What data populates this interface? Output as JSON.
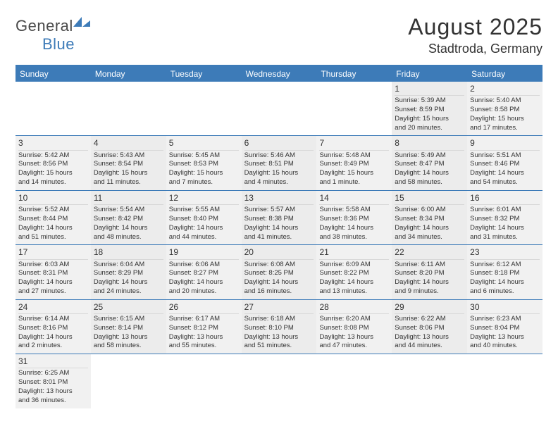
{
  "logo": {
    "text1": "General",
    "text2": "Blue"
  },
  "title": "August 2025",
  "location": "Stadtroda, Germany",
  "weekdays": [
    "Sunday",
    "Monday",
    "Tuesday",
    "Wednesday",
    "Thursday",
    "Friday",
    "Saturday"
  ],
  "colors": {
    "header_bg": "#3d7bb8",
    "cell_bg": "#f1f1f1",
    "text": "#333333"
  },
  "weeks": [
    [
      null,
      null,
      null,
      null,
      null,
      {
        "n": "1",
        "sr": "Sunrise: 5:39 AM",
        "ss": "Sunset: 8:59 PM",
        "d1": "Daylight: 15 hours",
        "d2": "and 20 minutes."
      },
      {
        "n": "2",
        "sr": "Sunrise: 5:40 AM",
        "ss": "Sunset: 8:58 PM",
        "d1": "Daylight: 15 hours",
        "d2": "and 17 minutes."
      }
    ],
    [
      {
        "n": "3",
        "sr": "Sunrise: 5:42 AM",
        "ss": "Sunset: 8:56 PM",
        "d1": "Daylight: 15 hours",
        "d2": "and 14 minutes."
      },
      {
        "n": "4",
        "sr": "Sunrise: 5:43 AM",
        "ss": "Sunset: 8:54 PM",
        "d1": "Daylight: 15 hours",
        "d2": "and 11 minutes."
      },
      {
        "n": "5",
        "sr": "Sunrise: 5:45 AM",
        "ss": "Sunset: 8:53 PM",
        "d1": "Daylight: 15 hours",
        "d2": "and 7 minutes."
      },
      {
        "n": "6",
        "sr": "Sunrise: 5:46 AM",
        "ss": "Sunset: 8:51 PM",
        "d1": "Daylight: 15 hours",
        "d2": "and 4 minutes."
      },
      {
        "n": "7",
        "sr": "Sunrise: 5:48 AM",
        "ss": "Sunset: 8:49 PM",
        "d1": "Daylight: 15 hours",
        "d2": "and 1 minute."
      },
      {
        "n": "8",
        "sr": "Sunrise: 5:49 AM",
        "ss": "Sunset: 8:47 PM",
        "d1": "Daylight: 14 hours",
        "d2": "and 58 minutes."
      },
      {
        "n": "9",
        "sr": "Sunrise: 5:51 AM",
        "ss": "Sunset: 8:46 PM",
        "d1": "Daylight: 14 hours",
        "d2": "and 54 minutes."
      }
    ],
    [
      {
        "n": "10",
        "sr": "Sunrise: 5:52 AM",
        "ss": "Sunset: 8:44 PM",
        "d1": "Daylight: 14 hours",
        "d2": "and 51 minutes."
      },
      {
        "n": "11",
        "sr": "Sunrise: 5:54 AM",
        "ss": "Sunset: 8:42 PM",
        "d1": "Daylight: 14 hours",
        "d2": "and 48 minutes."
      },
      {
        "n": "12",
        "sr": "Sunrise: 5:55 AM",
        "ss": "Sunset: 8:40 PM",
        "d1": "Daylight: 14 hours",
        "d2": "and 44 minutes."
      },
      {
        "n": "13",
        "sr": "Sunrise: 5:57 AM",
        "ss": "Sunset: 8:38 PM",
        "d1": "Daylight: 14 hours",
        "d2": "and 41 minutes."
      },
      {
        "n": "14",
        "sr": "Sunrise: 5:58 AM",
        "ss": "Sunset: 8:36 PM",
        "d1": "Daylight: 14 hours",
        "d2": "and 38 minutes."
      },
      {
        "n": "15",
        "sr": "Sunrise: 6:00 AM",
        "ss": "Sunset: 8:34 PM",
        "d1": "Daylight: 14 hours",
        "d2": "and 34 minutes."
      },
      {
        "n": "16",
        "sr": "Sunrise: 6:01 AM",
        "ss": "Sunset: 8:32 PM",
        "d1": "Daylight: 14 hours",
        "d2": "and 31 minutes."
      }
    ],
    [
      {
        "n": "17",
        "sr": "Sunrise: 6:03 AM",
        "ss": "Sunset: 8:31 PM",
        "d1": "Daylight: 14 hours",
        "d2": "and 27 minutes."
      },
      {
        "n": "18",
        "sr": "Sunrise: 6:04 AM",
        "ss": "Sunset: 8:29 PM",
        "d1": "Daylight: 14 hours",
        "d2": "and 24 minutes."
      },
      {
        "n": "19",
        "sr": "Sunrise: 6:06 AM",
        "ss": "Sunset: 8:27 PM",
        "d1": "Daylight: 14 hours",
        "d2": "and 20 minutes."
      },
      {
        "n": "20",
        "sr": "Sunrise: 6:08 AM",
        "ss": "Sunset: 8:25 PM",
        "d1": "Daylight: 14 hours",
        "d2": "and 16 minutes."
      },
      {
        "n": "21",
        "sr": "Sunrise: 6:09 AM",
        "ss": "Sunset: 8:22 PM",
        "d1": "Daylight: 14 hours",
        "d2": "and 13 minutes."
      },
      {
        "n": "22",
        "sr": "Sunrise: 6:11 AM",
        "ss": "Sunset: 8:20 PM",
        "d1": "Daylight: 14 hours",
        "d2": "and 9 minutes."
      },
      {
        "n": "23",
        "sr": "Sunrise: 6:12 AM",
        "ss": "Sunset: 8:18 PM",
        "d1": "Daylight: 14 hours",
        "d2": "and 6 minutes."
      }
    ],
    [
      {
        "n": "24",
        "sr": "Sunrise: 6:14 AM",
        "ss": "Sunset: 8:16 PM",
        "d1": "Daylight: 14 hours",
        "d2": "and 2 minutes."
      },
      {
        "n": "25",
        "sr": "Sunrise: 6:15 AM",
        "ss": "Sunset: 8:14 PM",
        "d1": "Daylight: 13 hours",
        "d2": "and 58 minutes."
      },
      {
        "n": "26",
        "sr": "Sunrise: 6:17 AM",
        "ss": "Sunset: 8:12 PM",
        "d1": "Daylight: 13 hours",
        "d2": "and 55 minutes."
      },
      {
        "n": "27",
        "sr": "Sunrise: 6:18 AM",
        "ss": "Sunset: 8:10 PM",
        "d1": "Daylight: 13 hours",
        "d2": "and 51 minutes."
      },
      {
        "n": "28",
        "sr": "Sunrise: 6:20 AM",
        "ss": "Sunset: 8:08 PM",
        "d1": "Daylight: 13 hours",
        "d2": "and 47 minutes."
      },
      {
        "n": "29",
        "sr": "Sunrise: 6:22 AM",
        "ss": "Sunset: 8:06 PM",
        "d1": "Daylight: 13 hours",
        "d2": "and 44 minutes."
      },
      {
        "n": "30",
        "sr": "Sunrise: 6:23 AM",
        "ss": "Sunset: 8:04 PM",
        "d1": "Daylight: 13 hours",
        "d2": "and 40 minutes."
      }
    ],
    [
      {
        "n": "31",
        "sr": "Sunrise: 6:25 AM",
        "ss": "Sunset: 8:01 PM",
        "d1": "Daylight: 13 hours",
        "d2": "and 36 minutes."
      },
      null,
      null,
      null,
      null,
      null,
      null
    ]
  ]
}
